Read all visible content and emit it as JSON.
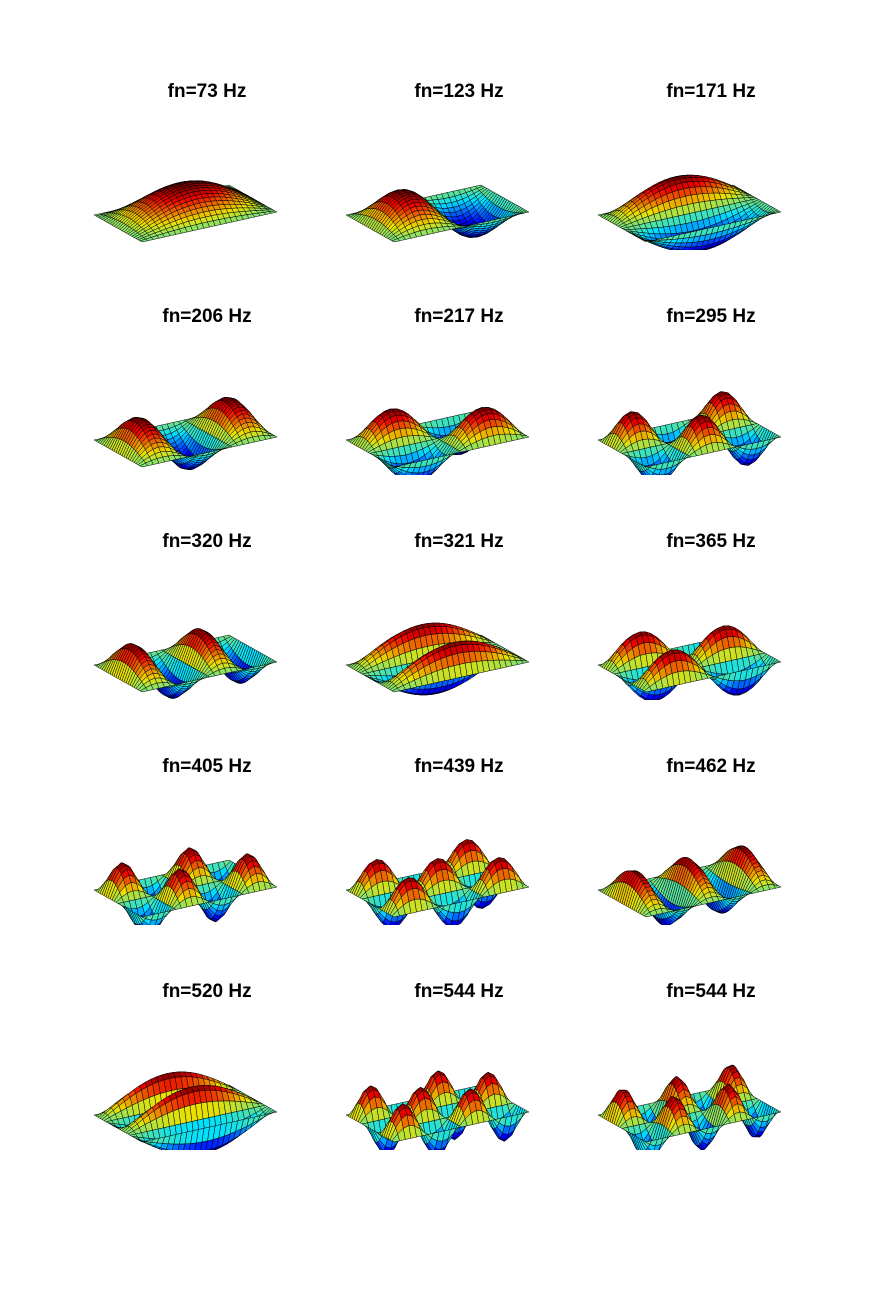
{
  "figure": {
    "rows": 5,
    "columns": 3,
    "colormap": "jet",
    "mesh_color": "#000000",
    "modes": [
      {
        "title": "fn=73 Hz",
        "m": 1,
        "n": 1
      },
      {
        "title": "fn=123 Hz",
        "m": 2,
        "n": 1
      },
      {
        "title": "fn=171 Hz",
        "m": 1,
        "n": 2
      },
      {
        "title": "fn=206 Hz",
        "m": 3,
        "n": 1
      },
      {
        "title": "fn=217 Hz",
        "m": 2,
        "n": 2
      },
      {
        "title": "fn=295 Hz",
        "m": 3,
        "n": 2
      },
      {
        "title": "fn=320 Hz",
        "m": 4,
        "n": 1
      },
      {
        "title": "fn=321 Hz",
        "m": 1,
        "n": 3
      },
      {
        "title": "fn=365 Hz",
        "m": 2,
        "n": 3
      },
      {
        "title": "fn=405 Hz",
        "m": 4,
        "n": 2
      },
      {
        "title": "fn=439 Hz",
        "m": 3,
        "n": 3
      },
      {
        "title": "fn=462 Hz",
        "m": 5,
        "n": 1
      },
      {
        "title": "fn=520 Hz",
        "m": 1,
        "n": 4
      },
      {
        "title": "fn=544 Hz",
        "m": 4,
        "n": 3
      },
      {
        "title": "fn=544 Hz",
        "m": 5,
        "n": 2
      }
    ]
  }
}
